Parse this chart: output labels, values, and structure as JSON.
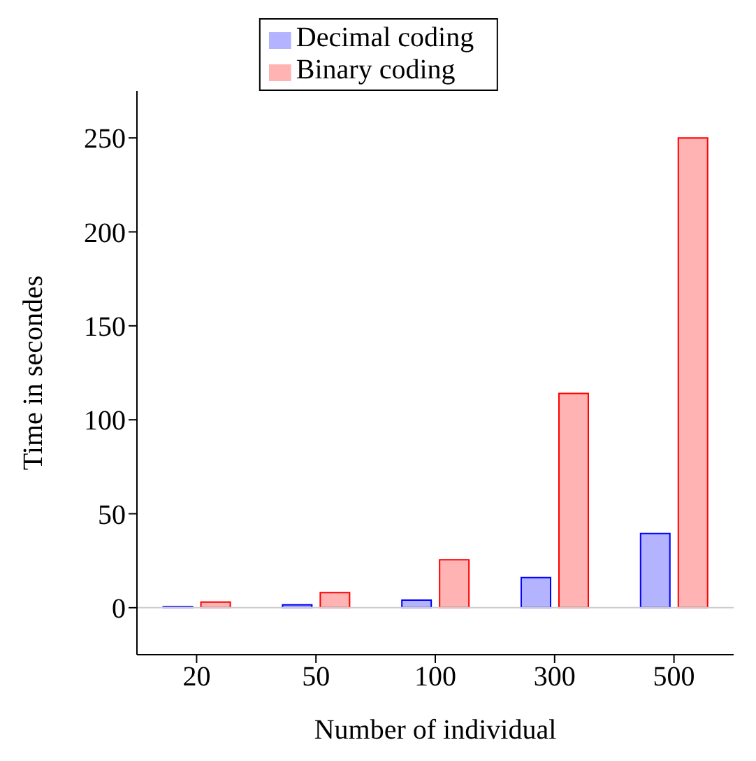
{
  "chart_data": {
    "type": "bar",
    "xlabel": "Number of individual",
    "ylabel": "Time in secondes",
    "categories": [
      "20",
      "50",
      "100",
      "300",
      "500"
    ],
    "series": [
      {
        "name": "Decimal coding",
        "color": "#b3b3ff",
        "values": [
          0.5,
          1.5,
          4,
          16,
          39.5
        ]
      },
      {
        "name": "Binary coding",
        "color": "#ffb3b3",
        "values": [
          3,
          8,
          25.5,
          114,
          250
        ]
      }
    ],
    "ref_lines": [
      {
        "axis": "y",
        "value": 0,
        "color": "#cccccc"
      }
    ],
    "ylim": [
      -25,
      275
    ],
    "yticks": [
      0,
      50,
      100,
      150,
      200,
      250
    ],
    "legend": "top"
  }
}
